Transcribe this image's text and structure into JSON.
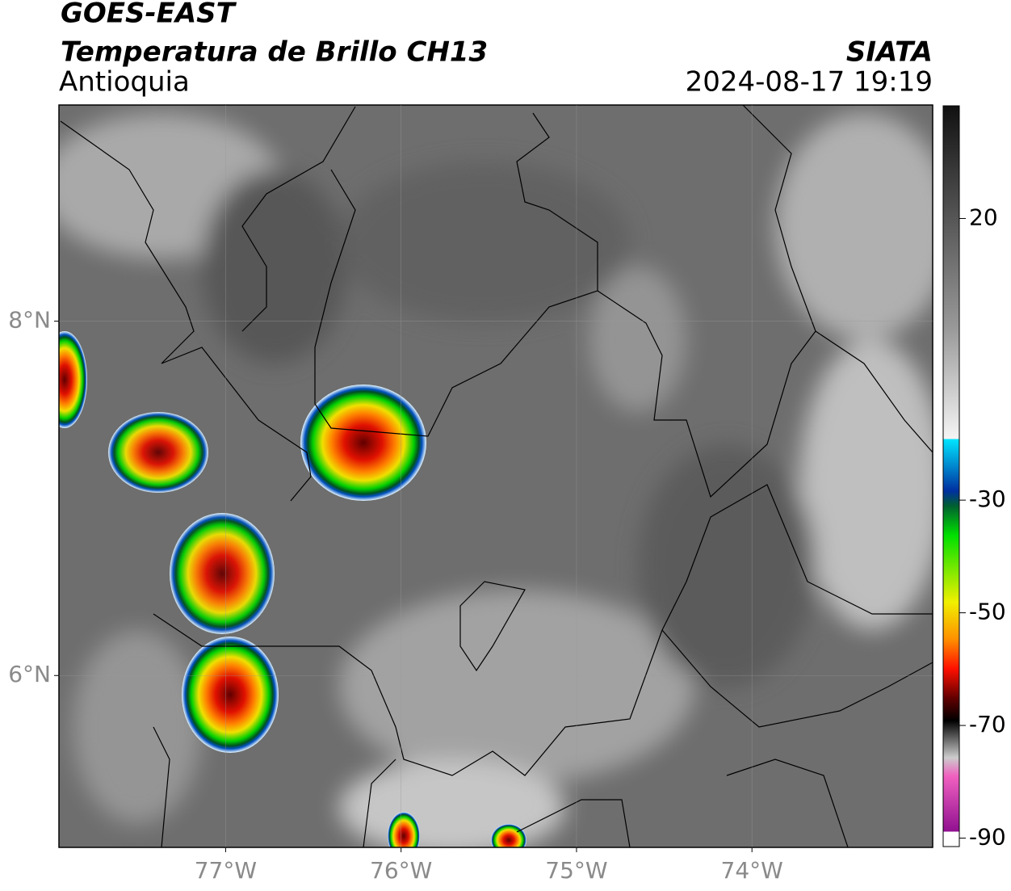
{
  "header": {
    "satellite": "GOES-EAST",
    "product": "Temperatura de Brillo CH13",
    "region": "Antioquia",
    "source": "SIATA",
    "datetime": "2024-08-17 19:19"
  },
  "map": {
    "xlim": [
      -77.95,
      -72.97
    ],
    "ylim": [
      5.03,
      9.22
    ],
    "lon_ticks": [
      {
        "value": -77,
        "label": "77°W"
      },
      {
        "value": -76,
        "label": "76°W"
      },
      {
        "value": -75,
        "label": "75°W"
      },
      {
        "value": -74,
        "label": "74°W"
      }
    ],
    "lat_ticks": [
      {
        "value": 8,
        "label": "8°N"
      },
      {
        "value": 6,
        "label": "6°N"
      }
    ],
    "grid": true
  },
  "colorbar": {
    "lim": [
      -91.5,
      40
    ],
    "ticks": [
      20,
      -30,
      -50,
      -70,
      -90
    ]
  }
}
